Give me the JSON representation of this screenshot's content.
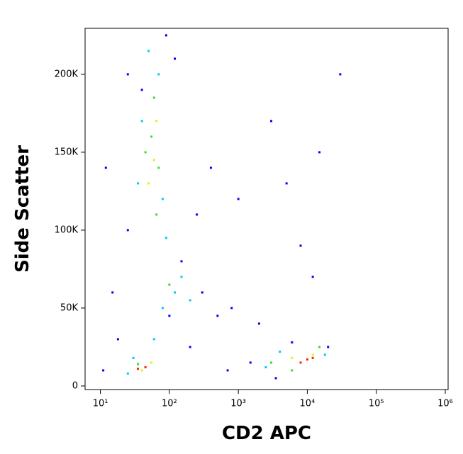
{
  "chart_data": {
    "type": "scatter",
    "x_label": "CD2 APC",
    "y_label": "Side Scatter",
    "x_scale": "log",
    "xlim": [
      6,
      1100000
    ],
    "ylim": [
      -2300,
      229500
    ],
    "xticks": [
      {
        "value": 10,
        "label": "10¹"
      },
      {
        "value": 100,
        "label": "10²"
      },
      {
        "value": 1000,
        "label": "10³"
      },
      {
        "value": 10000,
        "label": "10⁴"
      },
      {
        "value": 100000,
        "label": "10⁵"
      },
      {
        "value": 1000000,
        "label": "10⁶"
      }
    ],
    "yticks": [
      0,
      {
        "value": 50000,
        "label": "50K"
      },
      {
        "value": 100000,
        "label": "100K"
      },
      {
        "value": 150000,
        "label": "150K"
      },
      {
        "value": 200000,
        "label": "200K"
      }
    ],
    "series": [
      {
        "color": "#0000ff",
        "x": [
          12,
          15,
          11,
          25,
          120,
          150,
          300,
          500,
          800,
          2000,
          5000,
          15000,
          8000,
          3000,
          25,
          200,
          1500,
          20000,
          90,
          40,
          1000,
          400,
          12000,
          30000,
          250,
          18,
          700,
          3500,
          6000,
          100
        ],
        "values": [
          140000,
          60000,
          10000,
          200000,
          210000,
          80000,
          60000,
          45000,
          50000,
          40000,
          130000,
          150000,
          90000,
          170000,
          100000,
          25000,
          15000,
          25000,
          225000,
          190000,
          120000,
          140000,
          70000,
          200000,
          110000,
          30000,
          10000,
          5000,
          28000,
          45000
        ]
      },
      {
        "color": "#00c8ff",
        "x": [
          40,
          80,
          35,
          70,
          120,
          80,
          200,
          60,
          25,
          4000,
          18000,
          2500,
          90,
          50,
          150,
          30
        ],
        "values": [
          170000,
          120000,
          130000,
          200000,
          60000,
          50000,
          55000,
          30000,
          8000,
          22000,
          20000,
          12000,
          95000,
          215000,
          70000,
          18000
        ]
      },
      {
        "color": "#33dd33",
        "x": [
          55,
          70,
          45,
          65,
          100,
          3000,
          15000,
          60,
          35,
          6000
        ],
        "values": [
          160000,
          140000,
          150000,
          110000,
          65000,
          15000,
          25000,
          185000,
          14000,
          10000
        ]
      },
      {
        "color": "#eeee00",
        "x": [
          60,
          50,
          65,
          40,
          6000,
          12000,
          55
        ],
        "values": [
          145000,
          130000,
          170000,
          10000,
          18000,
          20000,
          15000
        ]
      },
      {
        "color": "#ff2200",
        "x": [
          45,
          35,
          10000,
          12000,
          8000
        ],
        "values": [
          12000,
          11000,
          17000,
          18000,
          15000
        ]
      }
    ]
  }
}
